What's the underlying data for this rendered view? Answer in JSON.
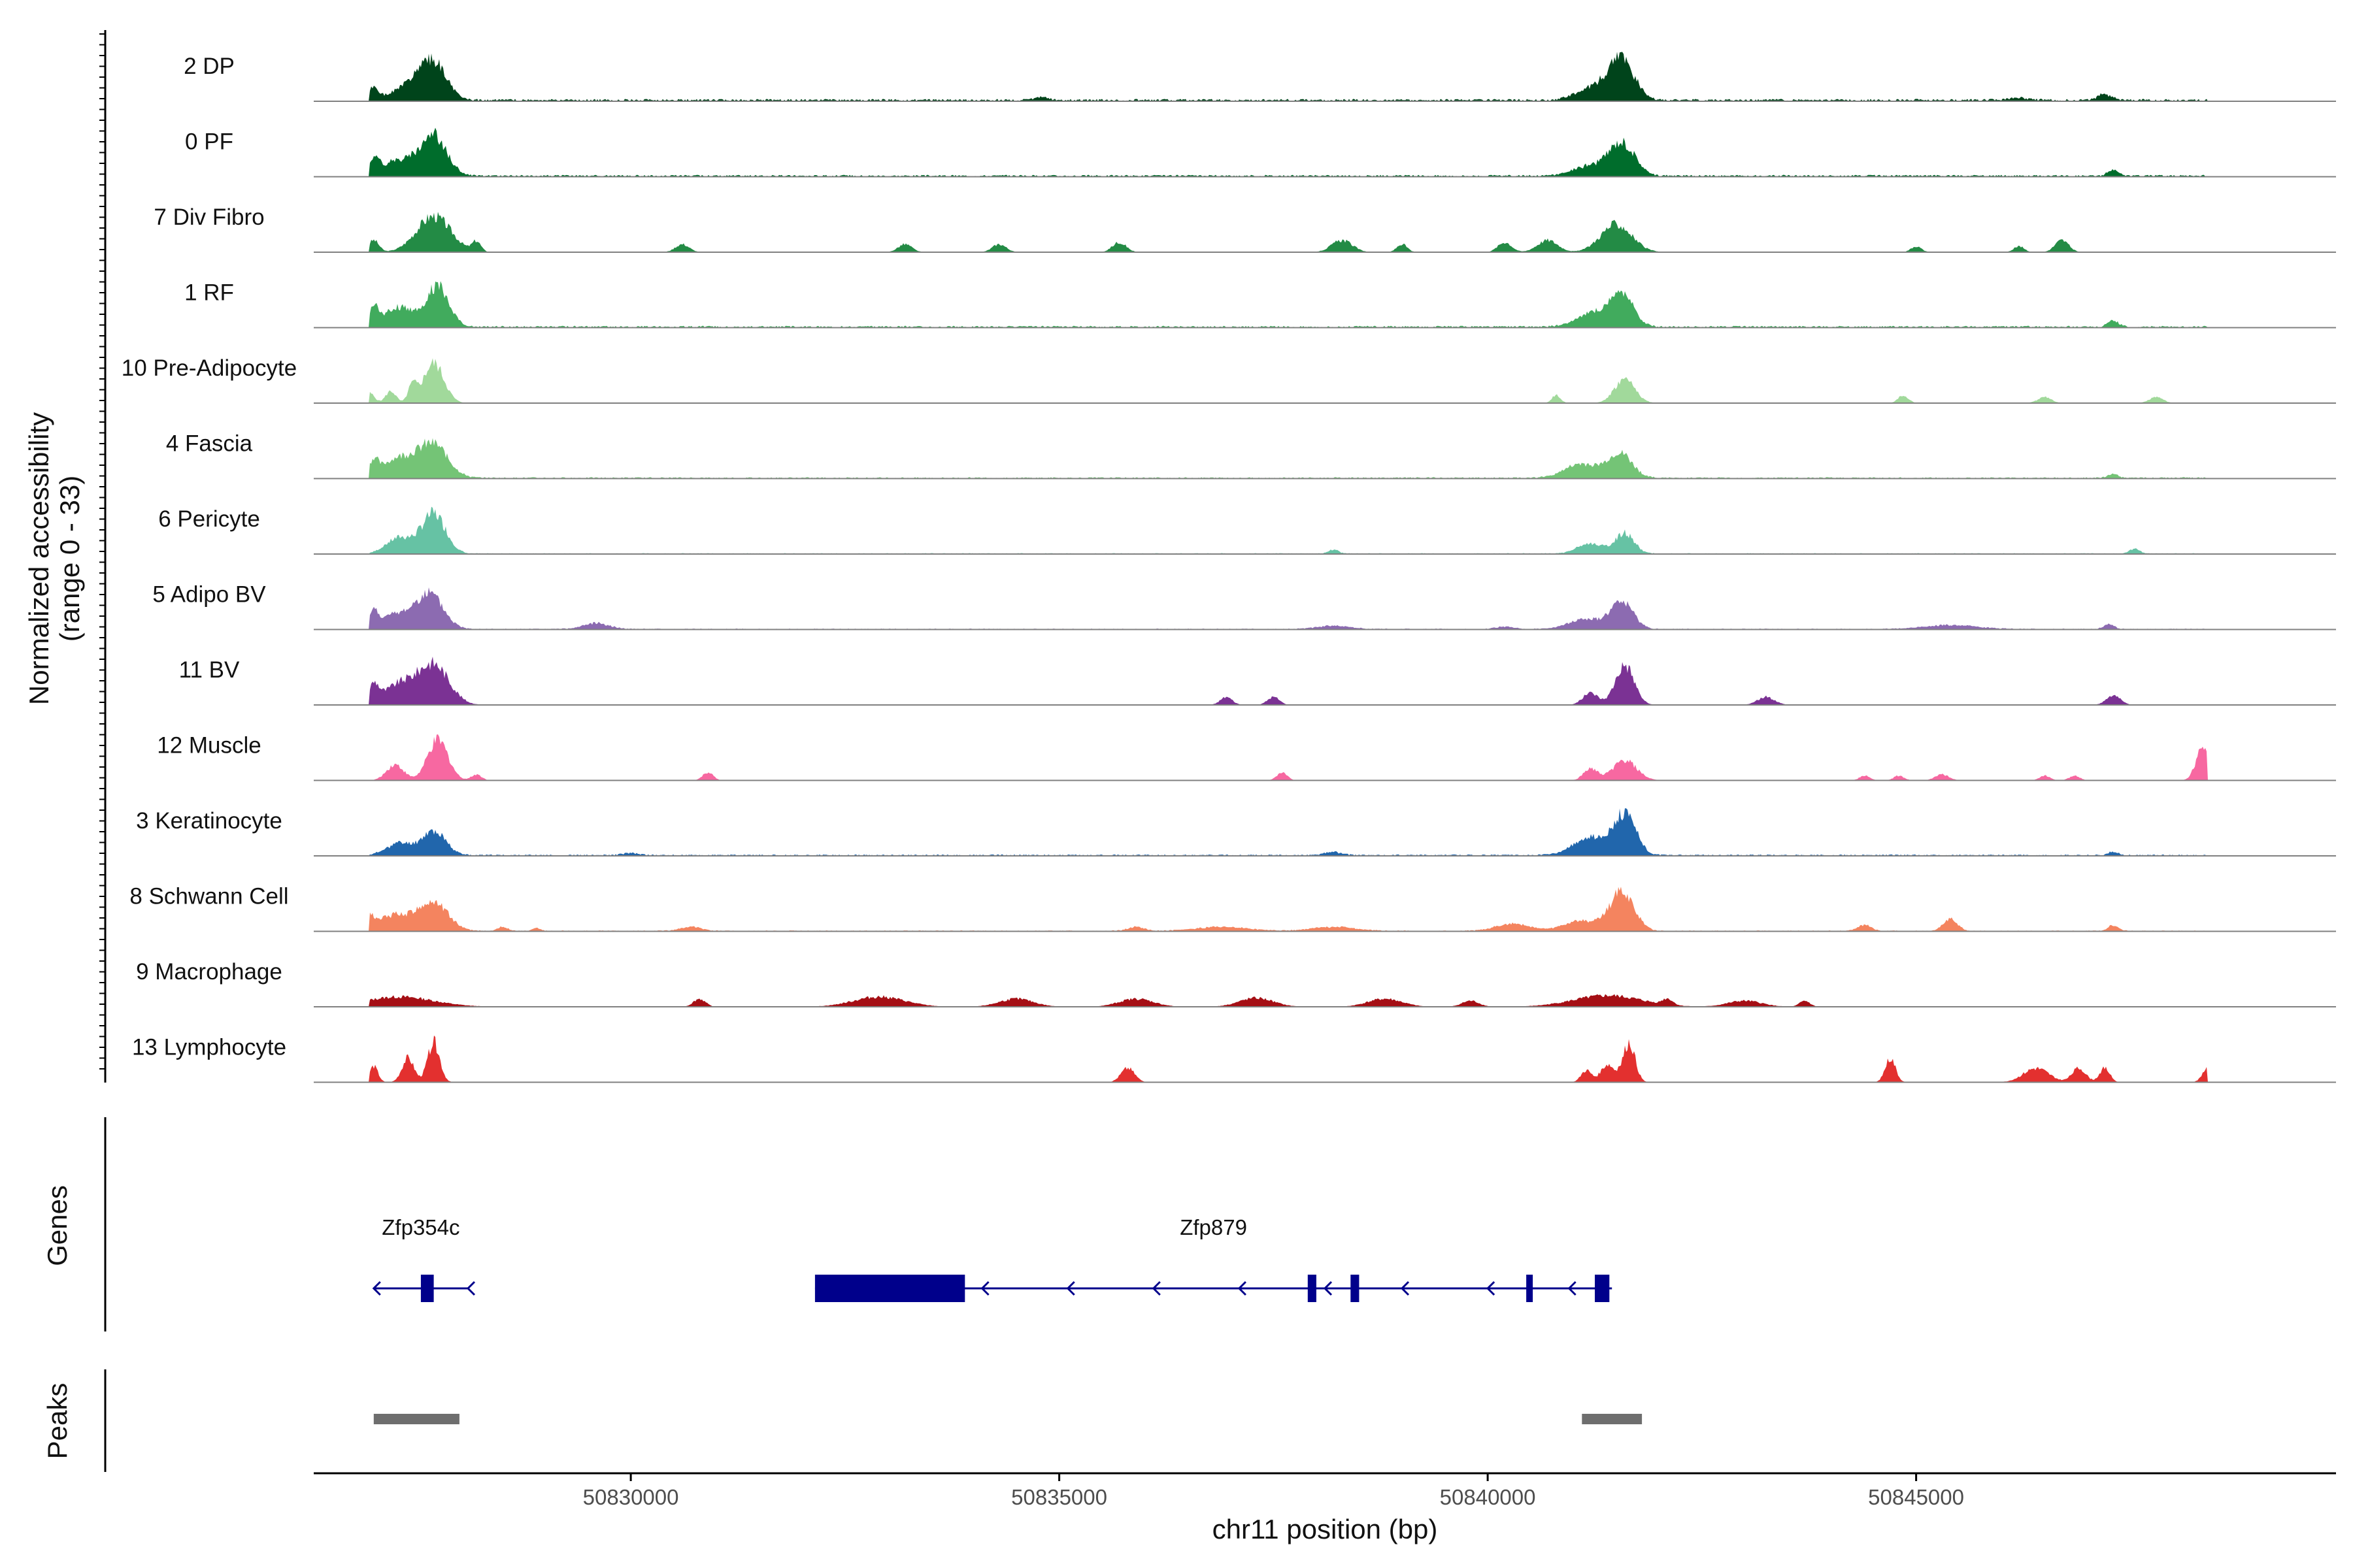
{
  "chart_data": {
    "type": "area",
    "title": "",
    "ylabel_line1": "Normalized accessibility",
    "ylabel_line2": "(range 0 - 33)",
    "y_range": [
      0,
      33
    ],
    "xlabel": "chr11 position (bp)",
    "x_range": [
      50826300,
      50849900
    ],
    "xticks": [
      50830000,
      50835000,
      50840000,
      50845000
    ],
    "xtick_labels": [
      "50830000",
      "50835000",
      "50840000",
      "50845000"
    ],
    "panel_labels": {
      "genes": "Genes",
      "peaks": "Peaks"
    },
    "tracks": [
      {
        "name": "2 DP",
        "color": "#00441b",
        "noise": 0.05,
        "seed": 1,
        "peaks": [
          [
            50827700,
            150,
            0.95
          ],
          [
            50827400,
            170,
            0.35
          ],
          [
            50827000,
            60,
            0.3
          ],
          [
            50841560,
            150,
            1.0
          ],
          [
            50841250,
            200,
            0.3
          ],
          [
            50847200,
            80,
            0.15
          ],
          [
            50834800,
            80,
            0.08
          ],
          [
            50846200,
            120,
            0.06
          ]
        ]
      },
      {
        "name": "0 PF",
        "color": "#006d2c",
        "noise": 0.04,
        "seed": 2,
        "peaks": [
          [
            50827700,
            150,
            1.0
          ],
          [
            50827300,
            200,
            0.4
          ],
          [
            50827000,
            60,
            0.35
          ],
          [
            50841570,
            150,
            0.8
          ],
          [
            50841200,
            200,
            0.25
          ],
          [
            50847300,
            60,
            0.15
          ]
        ]
      },
      {
        "name": "7 Div Fibro",
        "color": "#238b45",
        "noise": 0,
        "seed": 3,
        "peaks": [
          [
            50827700,
            200,
            0.9
          ],
          [
            50827000,
            60,
            0.3
          ],
          [
            50828200,
            50,
            0.25
          ],
          [
            50830600,
            80,
            0.2
          ],
          [
            50833200,
            80,
            0.2
          ],
          [
            50834300,
            80,
            0.2
          ],
          [
            50835700,
            80,
            0.25
          ],
          [
            50838300,
            120,
            0.3
          ],
          [
            50839000,
            60,
            0.2
          ],
          [
            50840200,
            80,
            0.25
          ],
          [
            50840700,
            120,
            0.3
          ],
          [
            50841500,
            180,
            0.7
          ],
          [
            50845000,
            60,
            0.15
          ],
          [
            50846200,
            60,
            0.15
          ],
          [
            50846700,
            80,
            0.3
          ]
        ]
      },
      {
        "name": "1 RF",
        "color": "#41ab5d",
        "noise": 0.04,
        "seed": 4,
        "peaks": [
          [
            50827750,
            130,
            1.0
          ],
          [
            50827300,
            180,
            0.5
          ],
          [
            50827000,
            50,
            0.45
          ],
          [
            50841570,
            130,
            0.8
          ],
          [
            50841250,
            200,
            0.35
          ],
          [
            50847300,
            60,
            0.15
          ]
        ]
      },
      {
        "name": "10 Pre-Adipocyte",
        "color": "#a1d99b",
        "noise": 0,
        "seed": 5,
        "peaks": [
          [
            50827700,
            120,
            1.0
          ],
          [
            50827200,
            60,
            0.3
          ],
          [
            50826950,
            60,
            0.25
          ],
          [
            50827450,
            50,
            0.4
          ],
          [
            50841600,
            120,
            0.6
          ],
          [
            50840800,
            50,
            0.2
          ],
          [
            50844850,
            60,
            0.2
          ],
          [
            50846500,
            80,
            0.15
          ],
          [
            50847800,
            80,
            0.15
          ]
        ]
      },
      {
        "name": "4 Fascia",
        "color": "#74c476",
        "noise": 0.03,
        "seed": 6,
        "peaks": [
          [
            50827700,
            170,
            0.8
          ],
          [
            50827300,
            200,
            0.5
          ],
          [
            50827000,
            50,
            0.35
          ],
          [
            50841550,
            140,
            0.6
          ],
          [
            50841100,
            200,
            0.35
          ],
          [
            50847300,
            60,
            0.1
          ]
        ]
      },
      {
        "name": "6 Pericyte",
        "color": "#66c2a4",
        "noise": 0.02,
        "seed": 7,
        "peaks": [
          [
            50827700,
            140,
            1.0
          ],
          [
            50827300,
            150,
            0.4
          ],
          [
            50841600,
            110,
            0.5
          ],
          [
            50841200,
            150,
            0.25
          ],
          [
            50838200,
            60,
            0.1
          ],
          [
            50847550,
            60,
            0.12
          ]
        ]
      },
      {
        "name": "5 Adipo BV",
        "color": "#8c6bb1",
        "noise": 0.02,
        "seed": 8,
        "peaks": [
          [
            50827650,
            160,
            0.85
          ],
          [
            50827250,
            200,
            0.35
          ],
          [
            50827000,
            50,
            0.35
          ],
          [
            50841570,
            130,
            0.65
          ],
          [
            50841150,
            200,
            0.25
          ],
          [
            50829600,
            150,
            0.15
          ],
          [
            50845400,
            300,
            0.1
          ],
          [
            50847250,
            60,
            0.12
          ],
          [
            50838200,
            200,
            0.08
          ],
          [
            50840200,
            100,
            0.06
          ]
        ]
      },
      {
        "name": "11 BV",
        "color": "#7b3294",
        "noise": 0,
        "seed": 9,
        "peaks": [
          [
            50827700,
            180,
            1.0
          ],
          [
            50827300,
            180,
            0.5
          ],
          [
            50827000,
            60,
            0.45
          ],
          [
            50841600,
            110,
            1.0
          ],
          [
            50841200,
            90,
            0.3
          ],
          [
            50836950,
            70,
            0.2
          ],
          [
            50837500,
            70,
            0.2
          ],
          [
            50843250,
            100,
            0.2
          ],
          [
            50847300,
            80,
            0.25
          ]
        ]
      },
      {
        "name": "12 Muscle",
        "color": "#f768a1",
        "noise": 0,
        "seed": 10,
        "peaks": [
          [
            50827750,
            120,
            1.0
          ],
          [
            50827250,
            100,
            0.4
          ],
          [
            50828200,
            60,
            0.15
          ],
          [
            50830900,
            60,
            0.2
          ],
          [
            50837600,
            60,
            0.2
          ],
          [
            50841200,
            80,
            0.3
          ],
          [
            50841600,
            140,
            0.5
          ],
          [
            50844400,
            60,
            0.12
          ],
          [
            50844800,
            60,
            0.12
          ],
          [
            50845300,
            80,
            0.15
          ],
          [
            50846500,
            60,
            0.12
          ],
          [
            50846850,
            60,
            0.12
          ],
          [
            50848350,
            80,
            0.85
          ]
        ]
      },
      {
        "name": "3 Keratinocyte",
        "color": "#2166ac",
        "noise": 0.03,
        "seed": 11,
        "peaks": [
          [
            50827700,
            140,
            0.6
          ],
          [
            50827300,
            150,
            0.3
          ],
          [
            50841600,
            130,
            1.0
          ],
          [
            50841200,
            200,
            0.45
          ],
          [
            50830000,
            100,
            0.05
          ],
          [
            50838200,
            100,
            0.08
          ],
          [
            50847300,
            60,
            0.08
          ]
        ]
      },
      {
        "name": "8 Schwann Cell",
        "color": "#f4845f",
        "noise": 0.02,
        "seed": 12,
        "peaks": [
          [
            50827700,
            170,
            0.7
          ],
          [
            50827250,
            200,
            0.4
          ],
          [
            50826950,
            50,
            0.3
          ],
          [
            50828500,
            60,
            0.1
          ],
          [
            50828900,
            40,
            0.08
          ],
          [
            50830700,
            120,
            0.1
          ],
          [
            50835900,
            100,
            0.1
          ],
          [
            50836900,
            300,
            0.1
          ],
          [
            50838200,
            250,
            0.1
          ],
          [
            50840300,
            200,
            0.18
          ],
          [
            50841570,
            140,
            1.0
          ],
          [
            50841100,
            200,
            0.25
          ],
          [
            50844400,
            80,
            0.15
          ],
          [
            50845400,
            80,
            0.3
          ],
          [
            50847300,
            60,
            0.15
          ]
        ]
      },
      {
        "name": "9 Macrophage",
        "color": "#a50f15",
        "noise": 0,
        "seed": 13,
        "peaks": [
          [
            50827300,
            400,
            0.25
          ],
          [
            50830800,
            70,
            0.2
          ],
          [
            50832900,
            300,
            0.25
          ],
          [
            50834500,
            200,
            0.2
          ],
          [
            50835900,
            200,
            0.2
          ],
          [
            50837300,
            200,
            0.22
          ],
          [
            50838800,
            200,
            0.2
          ],
          [
            50839800,
            100,
            0.15
          ],
          [
            50841400,
            400,
            0.28
          ],
          [
            50842100,
            60,
            0.15
          ],
          [
            50843000,
            200,
            0.15
          ],
          [
            50843700,
            60,
            0.15
          ]
        ]
      },
      {
        "name": "13 Lymphocyte",
        "color": "#e3302f",
        "noise": 0,
        "seed": 14,
        "peaks": [
          [
            50827700,
            70,
            1.0
          ],
          [
            50827400,
            70,
            0.6
          ],
          [
            50827000,
            50,
            0.4
          ],
          [
            50835800,
            80,
            0.35
          ],
          [
            50841150,
            60,
            0.3
          ],
          [
            50841400,
            80,
            0.45
          ],
          [
            50841650,
            70,
            1.0
          ],
          [
            50844700,
            60,
            0.6
          ],
          [
            50846400,
            150,
            0.35
          ],
          [
            50846900,
            80,
            0.35
          ],
          [
            50847200,
            60,
            0.35
          ],
          [
            50848400,
            60,
            0.35
          ]
        ]
      }
    ],
    "genes": [
      {
        "name": "Zfp354c",
        "start": 50827000,
        "end": 50828100,
        "strand": "-",
        "arrows": [
          50827000,
          50828100
        ],
        "exons": [
          [
            50827550,
            50827700
          ]
        ]
      },
      {
        "name": "Zfp879",
        "start": 50832150,
        "end": 50841450,
        "strand": "-",
        "arrows": [
          50834100,
          50835100,
          50836100,
          50837100,
          50838100,
          50839000,
          50840000,
          50840950
        ],
        "exons": [
          [
            50832150,
            50833900
          ],
          [
            50837900,
            50838000
          ],
          [
            50838400,
            50838500
          ],
          [
            50840450,
            50840500
          ],
          [
            50841250,
            50841420
          ]
        ]
      }
    ],
    "peak_regions": [
      [
        50827000,
        50828000
      ],
      [
        50841100,
        50841800
      ]
    ]
  }
}
